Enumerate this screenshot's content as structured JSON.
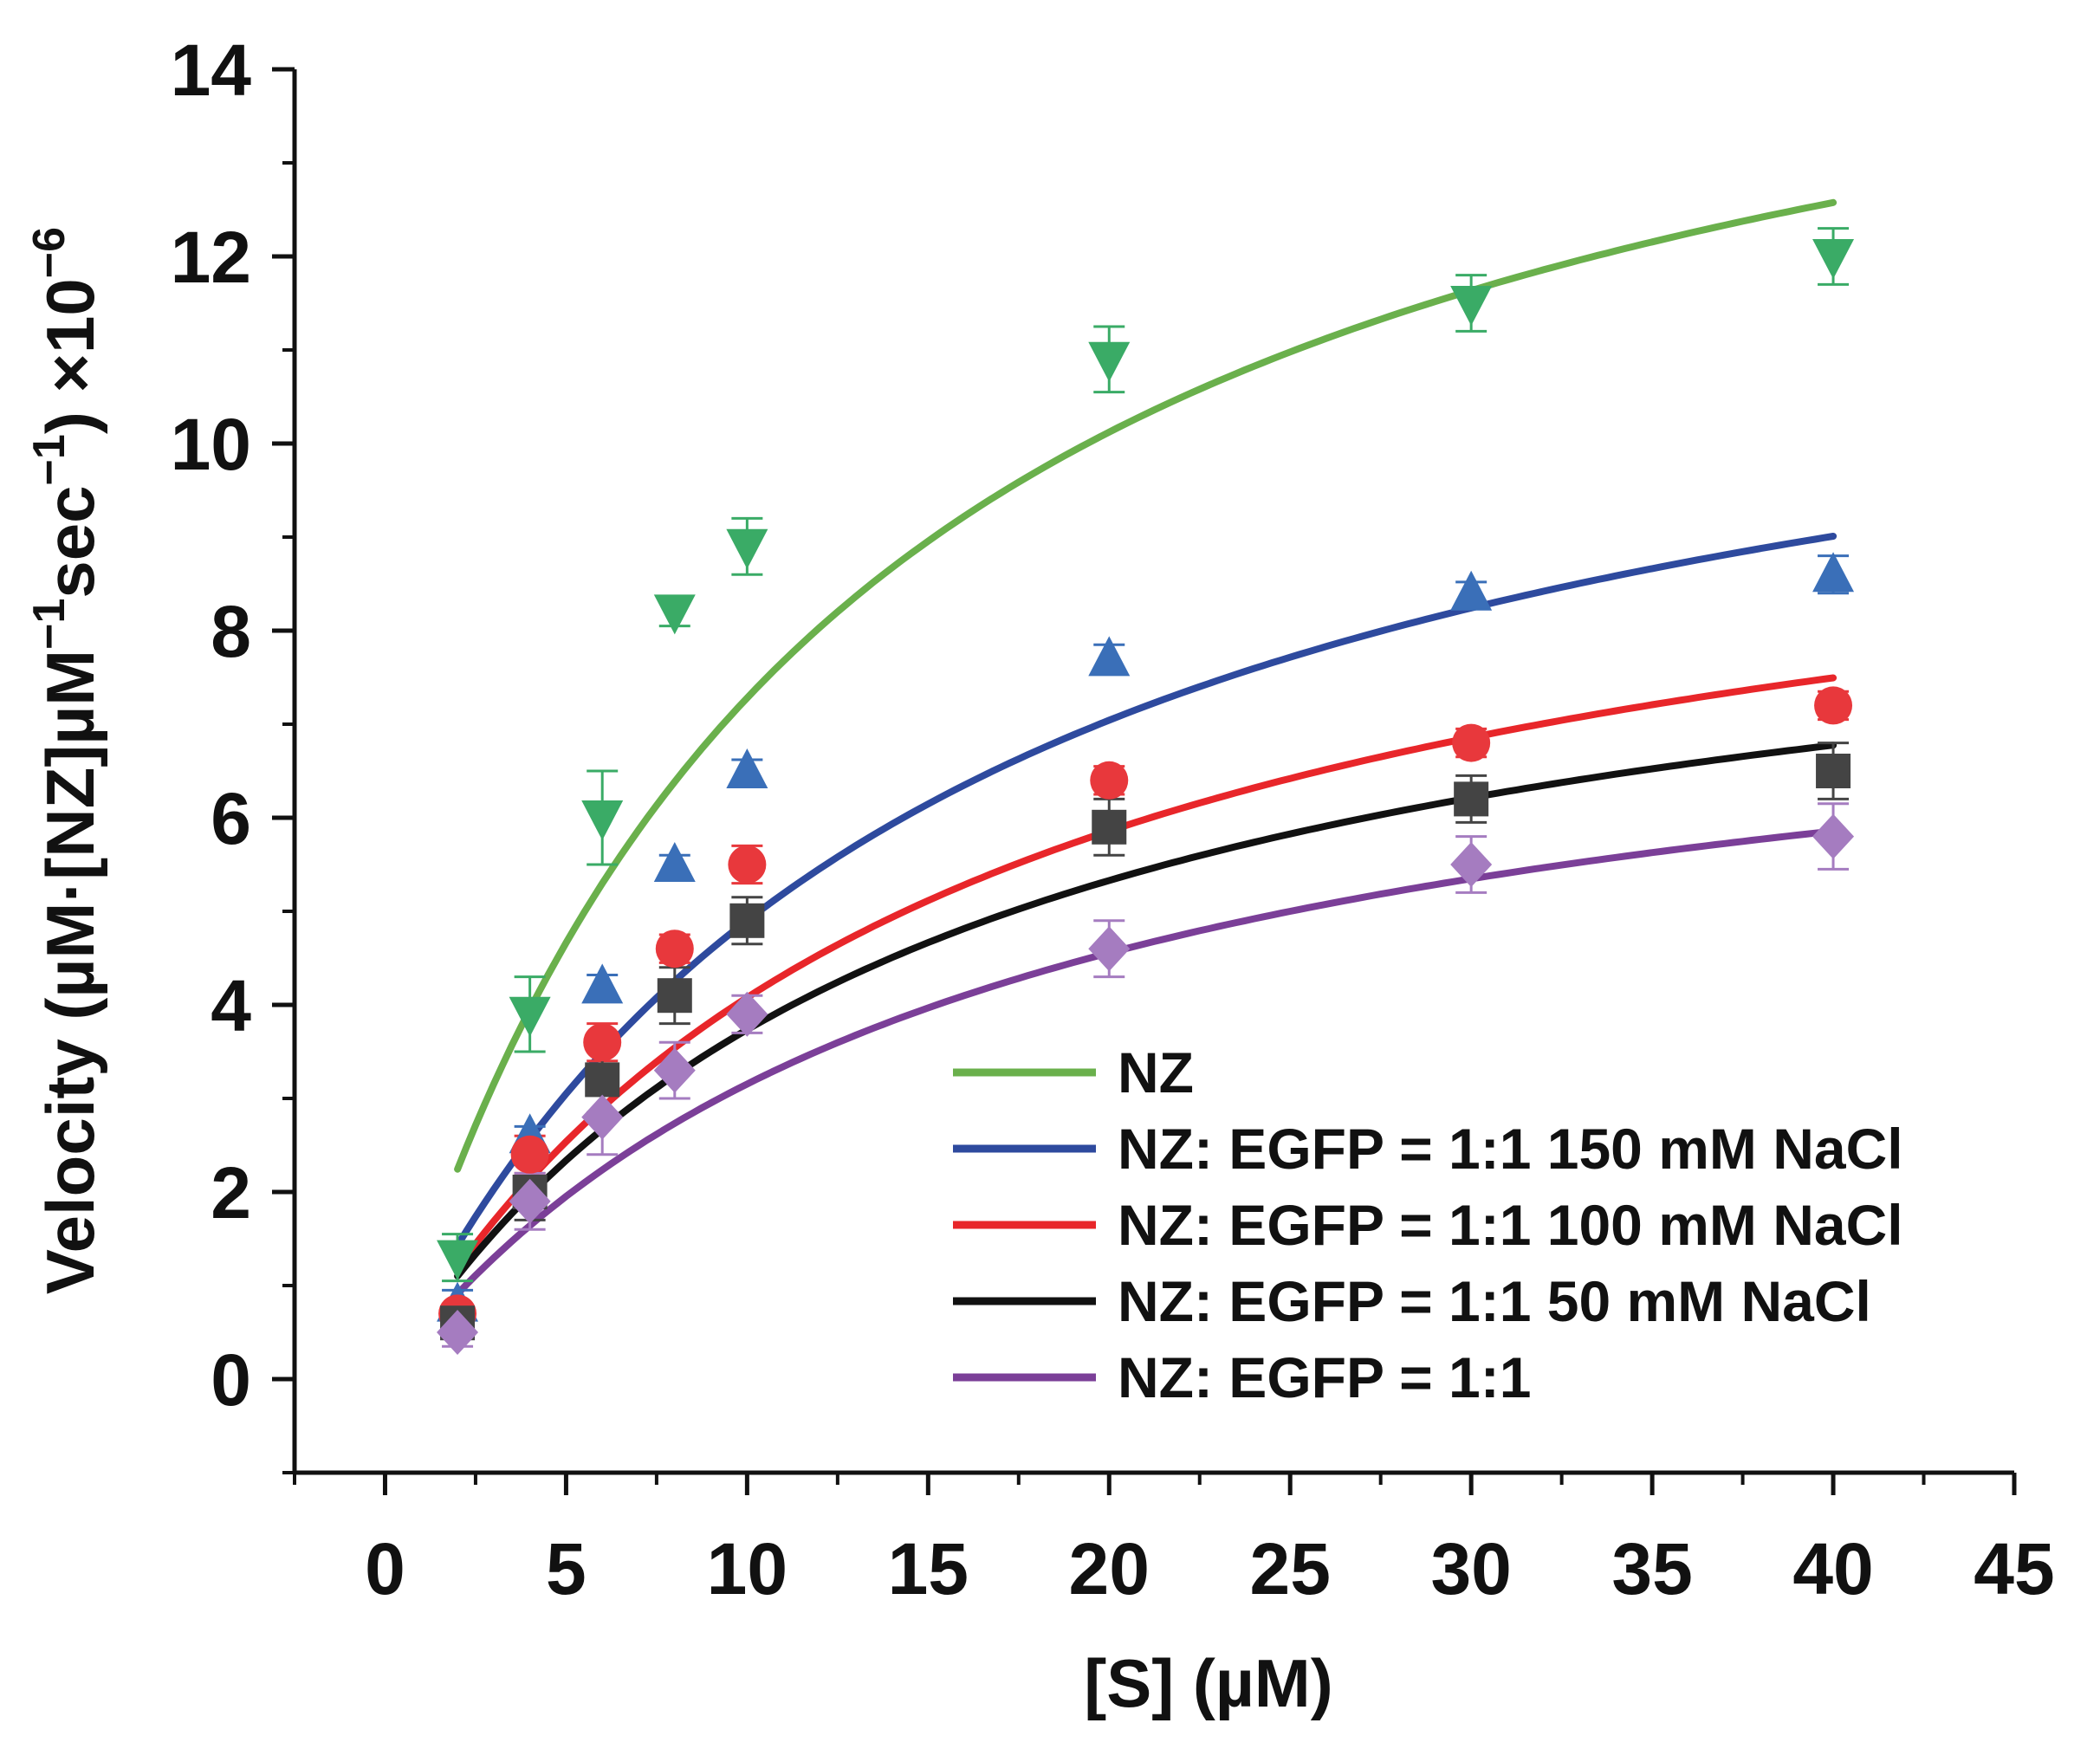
{
  "chart_data": {
    "type": "scatter",
    "title": "",
    "xlabel": "[S] (µM)",
    "ylabel": {
      "part1": "Velocity (µM·[NZ]µM",
      "sup1": "−1",
      "part2": "sec",
      "sup2": "−1",
      "part3": ") ×10",
      "sup3": "−6"
    },
    "xlim": [
      -2.5,
      45
    ],
    "ylim": [
      -1,
      14
    ],
    "xticks": [
      0,
      5,
      10,
      15,
      20,
      25,
      30,
      35,
      40,
      45
    ],
    "yticks": [
      0,
      2,
      4,
      6,
      8,
      10,
      12,
      14
    ],
    "grid": false,
    "legend_position": "bottom-right",
    "x": [
      2,
      4,
      6,
      8,
      10,
      20,
      30,
      40
    ],
    "series": [
      {
        "name": "NZ",
        "color": "#6ab04c",
        "marker_color": "#3aab66",
        "marker": "triangle-down",
        "values": [
          1.3,
          3.9,
          6.0,
          8.2,
          8.9,
          10.9,
          11.5,
          12.0
        ],
        "errors": [
          0.25,
          0.4,
          0.5,
          0.15,
          0.3,
          0.35,
          0.3,
          0.3
        ],
        "fit": {
          "vmax": 16.6,
          "km": 12.8
        }
      },
      {
        "name": "NZ: EGFP = 1:1 150 mM NaCl",
        "color": "#2e4a9e",
        "marker_color": "#3a6fb8",
        "marker": "triangle-up",
        "values": [
          0.8,
          2.6,
          4.2,
          5.5,
          6.5,
          7.7,
          8.4,
          8.6
        ],
        "errors": [
          0.15,
          0.1,
          0.12,
          0.1,
          0.12,
          0.15,
          0.12,
          0.2
        ],
        "fit": {
          "vmax": 12.5,
          "km": 15.5
        }
      },
      {
        "name": "NZ: EGFP = 1:1 100 mM NaCl",
        "color": "#e8262a",
        "marker_color": "#e8383c",
        "marker": "circle",
        "values": [
          0.7,
          2.4,
          3.6,
          4.6,
          5.5,
          6.4,
          6.8,
          7.2
        ],
        "errors": [
          0.1,
          0.2,
          0.2,
          0.15,
          0.2,
          0.15,
          0.15,
          0.15
        ],
        "fit": {
          "vmax": 10.4,
          "km": 15.5
        }
      },
      {
        "name": "NZ: EGFP = 1:1 50 mM NaCl",
        "color": "#111111",
        "marker_color": "#444444",
        "marker": "square",
        "values": [
          0.6,
          2.0,
          3.2,
          4.1,
          4.9,
          5.9,
          6.2,
          6.5
        ],
        "errors": [
          0.1,
          0.3,
          0.35,
          0.3,
          0.25,
          0.3,
          0.25,
          0.3
        ],
        "fit": {
          "vmax": 9.3,
          "km": 14.9
        }
      },
      {
        "name": "NZ: EGFP = 1:1",
        "color": "#7b3f98",
        "marker_color": "#a57cc0",
        "marker": "diamond",
        "values": [
          0.5,
          1.9,
          2.8,
          3.3,
          3.9,
          4.6,
          5.5,
          5.8
        ],
        "errors": [
          0.15,
          0.3,
          0.4,
          0.3,
          0.2,
          0.3,
          0.3,
          0.35
        ],
        "fit": {
          "vmax": 8.2,
          "km": 16.0
        }
      }
    ]
  }
}
